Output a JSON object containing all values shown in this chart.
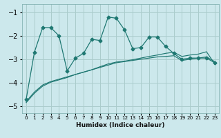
{
  "xlabel": "Humidex (Indice chaleur)",
  "bg_color": "#cce8ec",
  "grid_color": "#aacccc",
  "line_color": "#1f7872",
  "xlim": [
    -0.5,
    23.5
  ],
  "ylim": [
    -5.3,
    -0.65
  ],
  "yticks": [
    -5,
    -4,
    -3,
    -2,
    -1
  ],
  "xticks": [
    0,
    1,
    2,
    3,
    4,
    5,
    6,
    7,
    8,
    9,
    10,
    11,
    12,
    13,
    14,
    15,
    16,
    17,
    18,
    19,
    20,
    21,
    22,
    23
  ],
  "line1_x": [
    0,
    1,
    2,
    3,
    4,
    5,
    6,
    7,
    8,
    9,
    10,
    11,
    12,
    13,
    14,
    15,
    16,
    17,
    18,
    19,
    20,
    21,
    22,
    23
  ],
  "line1_y": [
    -4.7,
    -2.7,
    -1.65,
    -1.65,
    -2.0,
    -3.5,
    -2.95,
    -2.75,
    -2.15,
    -2.2,
    -1.2,
    -1.25,
    -1.75,
    -2.55,
    -2.5,
    -2.05,
    -2.05,
    -2.45,
    -2.75,
    -3.0,
    -2.95,
    -2.95,
    -2.95,
    -3.15
  ],
  "line2_x": [
    0,
    1,
    2,
    3,
    4,
    5,
    6,
    7,
    8,
    9,
    10,
    11,
    12,
    13,
    14,
    15,
    16,
    17,
    18,
    19,
    20,
    21,
    22,
    23
  ],
  "line2_y": [
    -4.8,
    -4.4,
    -4.1,
    -3.95,
    -3.85,
    -3.75,
    -3.65,
    -3.55,
    -3.45,
    -3.35,
    -3.25,
    -3.15,
    -3.1,
    -3.05,
    -3.0,
    -2.95,
    -2.9,
    -2.88,
    -2.85,
    -3.05,
    -3.0,
    -2.95,
    -2.9,
    -3.1
  ],
  "line3_x": [
    0,
    1,
    2,
    3,
    4,
    5,
    6,
    7,
    8,
    9,
    10,
    11,
    12,
    13,
    14,
    15,
    16,
    17,
    18,
    19,
    20,
    21,
    22,
    23
  ],
  "line3_y": [
    -4.85,
    -4.45,
    -4.15,
    -3.98,
    -3.88,
    -3.78,
    -3.65,
    -3.55,
    -3.45,
    -3.32,
    -3.2,
    -3.12,
    -3.08,
    -3.02,
    -2.95,
    -2.88,
    -2.82,
    -2.75,
    -2.7,
    -2.88,
    -2.82,
    -2.78,
    -2.68,
    -3.2
  ]
}
